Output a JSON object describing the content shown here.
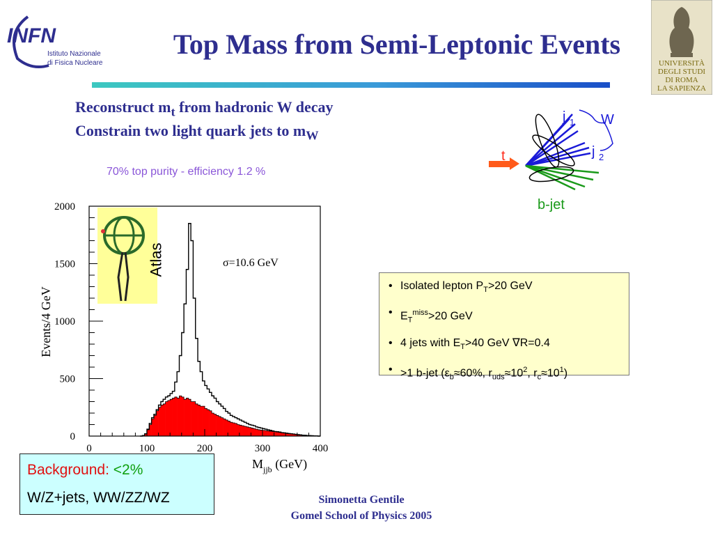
{
  "slide": {
    "title": "Top Mass from Semi-Leptonic Events",
    "line1": {
      "text": "Reconstruct m",
      "sub": "t",
      "tail": " from hadronic W decay"
    },
    "line2": {
      "text": "Constrain two light quark jets to m",
      "sub": "W"
    },
    "purity": "70% top purity - efficiency 1.2 %",
    "atlas_label": "Atlas",
    "footer": {
      "author": "Simonetta Gentile",
      "event": "Gomel School of Physics 2005"
    },
    "logos": {
      "infn_mark": "INFN",
      "infn_sub1": "Istituto Nazionale",
      "infn_sub2": "di Fisica Nucleare",
      "sapienza": [
        "UNIVERSITÀ",
        "DEGLI STUDI",
        "DI ROMA",
        "LA SAPIENZA"
      ]
    }
  },
  "cuts": {
    "items": [
      {
        "a": "Isolated lepton P",
        "sub": "T",
        "b": ">20 GeV"
      },
      {
        "a": "E",
        "sub": "T",
        "sup": "miss",
        "b": ">20 GeV"
      },
      {
        "a": "4 jets with E",
        "sub": "T",
        "b": ">40 GeV  ∇R=0.4"
      },
      {
        "a": ">1 b-jet (",
        "eps": "ε",
        "epssub": "b",
        "b": "≈60%, r",
        "rsub": "uds",
        "c": "≈10",
        "csup": "2",
        "d": ", r",
        "dsub": "c",
        "e": "≈10",
        "esup": "1",
        "f": ")"
      }
    ]
  },
  "background": {
    "label": "Background:",
    "value": " <2%",
    "processes": "W/Z+jets, WW/ZZ/WZ"
  },
  "diagram": {
    "t": "t",
    "j1": "j",
    "j1sub": "1",
    "j2": "j",
    "j2sub": "2",
    "W": "W",
    "bjet": "b-jet"
  },
  "colors": {
    "title": "#2e2e8f",
    "signal_line": "#000000",
    "background_fill": "#ff0000",
    "purity": "#8a56d8",
    "light_jets": "#1a1ad8",
    "b_jets": "#1a9a1a",
    "top_arrow": "#ff5a1a"
  },
  "chart_data": {
    "type": "area",
    "xlabel": "M",
    "xlabel_sub": "jjb",
    "xlabel_unit": " (GeV)",
    "ylabel": "Events/4 GeV",
    "xlim": [
      0,
      400
    ],
    "ylim": [
      0,
      2000
    ],
    "xticks": [
      0,
      100,
      200,
      300,
      400
    ],
    "yticks": [
      0,
      500,
      1000,
      1500,
      2000
    ],
    "annotation": "σ=10.6 GeV",
    "grid": false,
    "bin_width": 4,
    "x": [
      88,
      92,
      96,
      100,
      104,
      108,
      112,
      116,
      120,
      124,
      128,
      132,
      136,
      140,
      144,
      148,
      152,
      156,
      160,
      164,
      168,
      172,
      176,
      180,
      184,
      188,
      192,
      196,
      200,
      204,
      208,
      212,
      216,
      220,
      224,
      228,
      232,
      236,
      240,
      244,
      248,
      252,
      256,
      260,
      264,
      268,
      272,
      276,
      280,
      284,
      288,
      292,
      296,
      300,
      304,
      308,
      312,
      316,
      320,
      324,
      328,
      332,
      336,
      340,
      344,
      348,
      352,
      356,
      360,
      364,
      368,
      372,
      376,
      380,
      384,
      388,
      392,
      396
    ],
    "series": [
      {
        "values": [
          0,
          5,
          20,
          60,
          110,
          160,
          190,
          230,
          270,
          300,
          320,
          340,
          350,
          370,
          390,
          470,
          560,
          700,
          900,
          1150,
          1450,
          1850,
          1700,
          1200,
          850,
          650,
          560,
          480,
          440,
          410,
          380,
          350,
          330,
          300,
          280,
          260,
          240,
          215,
          200,
          180,
          170,
          160,
          150,
          140,
          130,
          120,
          110,
          100,
          95,
          90,
          80,
          75,
          70,
          65,
          60,
          55,
          50,
          45,
          40,
          38,
          35,
          30,
          28,
          25,
          22,
          20,
          18,
          15,
          12,
          10,
          8,
          6,
          5,
          4,
          3,
          2,
          1,
          0
        ]
      },
      {
        "values": [
          0,
          5,
          18,
          55,
          100,
          150,
          180,
          220,
          250,
          270,
          280,
          300,
          310,
          320,
          330,
          340,
          330,
          350,
          340,
          320,
          330,
          320,
          300,
          300,
          280,
          270,
          260,
          260,
          240,
          230,
          220,
          200,
          190,
          180,
          170,
          160,
          150,
          140,
          130,
          120,
          115,
          110,
          100,
          95,
          90,
          85,
          80,
          75,
          70,
          65,
          60,
          55,
          52,
          50,
          48,
          45,
          42,
          40,
          38,
          35,
          32,
          30,
          28,
          25,
          22,
          20,
          18,
          16,
          14,
          12,
          10,
          8,
          6,
          5,
          4,
          3,
          2,
          0
        ]
      }
    ]
  }
}
